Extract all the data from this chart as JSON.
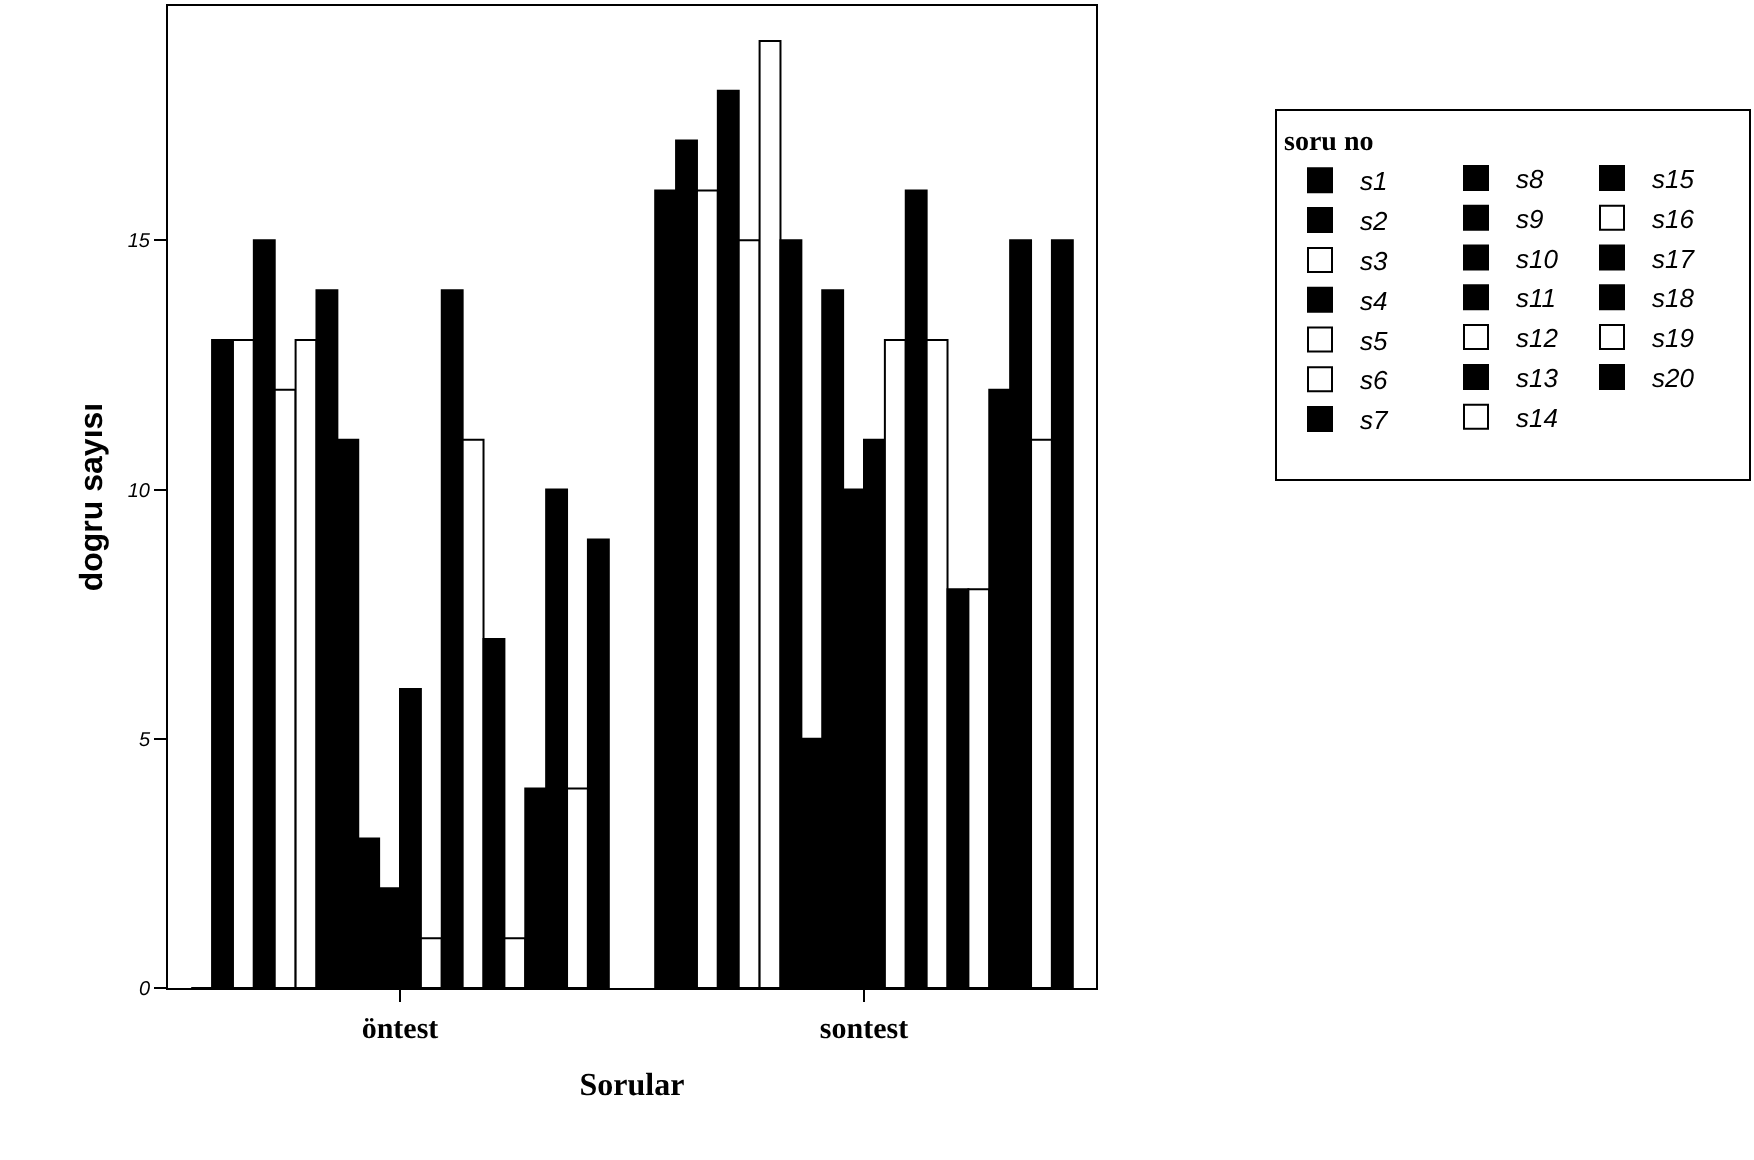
{
  "chart_data": {
    "type": "bar",
    "xlabel": "Sorular",
    "ylabel": "dogru sayısı",
    "legend_title": "soru no",
    "legend": "top right",
    "categories": [
      "öntest",
      "sontest"
    ],
    "ylim": [
      0,
      19.7
    ],
    "yticks": [
      0,
      5,
      10,
      15
    ],
    "series": [
      {
        "name": "s1",
        "color": "#000000",
        "values": [
          0,
          16
        ]
      },
      {
        "name": "s2",
        "color": "#000000",
        "values": [
          13,
          17
        ]
      },
      {
        "name": "s3",
        "color": "#ffffff",
        "values": [
          13,
          16
        ]
      },
      {
        "name": "s4",
        "color": "#000000",
        "values": [
          15,
          18
        ]
      },
      {
        "name": "s5",
        "color": "#ffffff",
        "values": [
          12,
          15
        ]
      },
      {
        "name": "s6",
        "color": "#ffffff",
        "values": [
          13,
          19
        ]
      },
      {
        "name": "s7",
        "color": "#000000",
        "values": [
          14,
          15
        ]
      },
      {
        "name": "s8",
        "color": "#000000",
        "values": [
          11,
          5
        ]
      },
      {
        "name": "s9",
        "color": "#000000",
        "values": [
          3,
          14
        ]
      },
      {
        "name": "s10",
        "color": "#000000",
        "values": [
          2,
          10
        ]
      },
      {
        "name": "s11",
        "color": "#000000",
        "values": [
          6,
          11
        ]
      },
      {
        "name": "s12",
        "color": "#ffffff",
        "values": [
          1,
          13
        ]
      },
      {
        "name": "s13",
        "color": "#000000",
        "values": [
          14,
          16
        ]
      },
      {
        "name": "s14",
        "color": "#ffffff",
        "values": [
          11,
          13
        ]
      },
      {
        "name": "s15",
        "color": "#000000",
        "values": [
          7,
          8
        ]
      },
      {
        "name": "s16",
        "color": "#ffffff",
        "values": [
          1,
          8
        ]
      },
      {
        "name": "s17",
        "color": "#000000",
        "values": [
          4,
          12
        ]
      },
      {
        "name": "s18",
        "color": "#000000",
        "values": [
          10,
          15
        ]
      },
      {
        "name": "s19",
        "color": "#ffffff",
        "values": [
          4,
          11
        ]
      },
      {
        "name": "s20",
        "color": "#000000",
        "values": [
          9,
          15
        ]
      }
    ]
  }
}
